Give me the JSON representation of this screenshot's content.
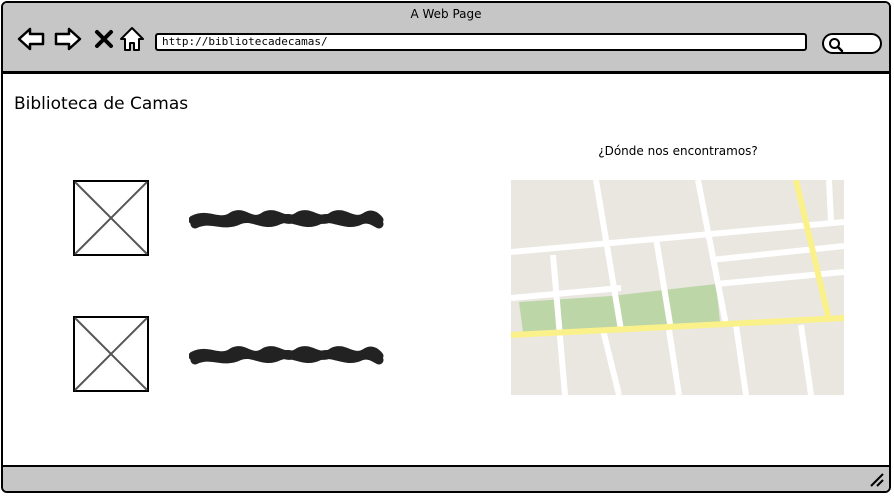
{
  "window": {
    "title": "A Web Page"
  },
  "toolbar": {
    "back_icon": "back-arrow-icon",
    "forward_icon": "forward-arrow-icon",
    "stop_icon": "close-x-icon",
    "home_icon": "home-icon",
    "url": "http://bibliotecadecamas/",
    "search_icon": "search-icon"
  },
  "page": {
    "title": "Biblioteca de Camas",
    "items": [
      {
        "image": "image-placeholder",
        "text": "scribble-text"
      },
      {
        "image": "image-placeholder",
        "text": "scribble-text"
      }
    ],
    "map": {
      "heading": "¿Dónde nos encontramos?",
      "icon": "map-image",
      "colors": {
        "land": "#e9e7e0",
        "road": "#ffffff",
        "main_road": "#fbf18a",
        "park": "#bcd6a8"
      }
    }
  },
  "statusbar": {
    "resize_icon": "resize-grip-icon"
  }
}
